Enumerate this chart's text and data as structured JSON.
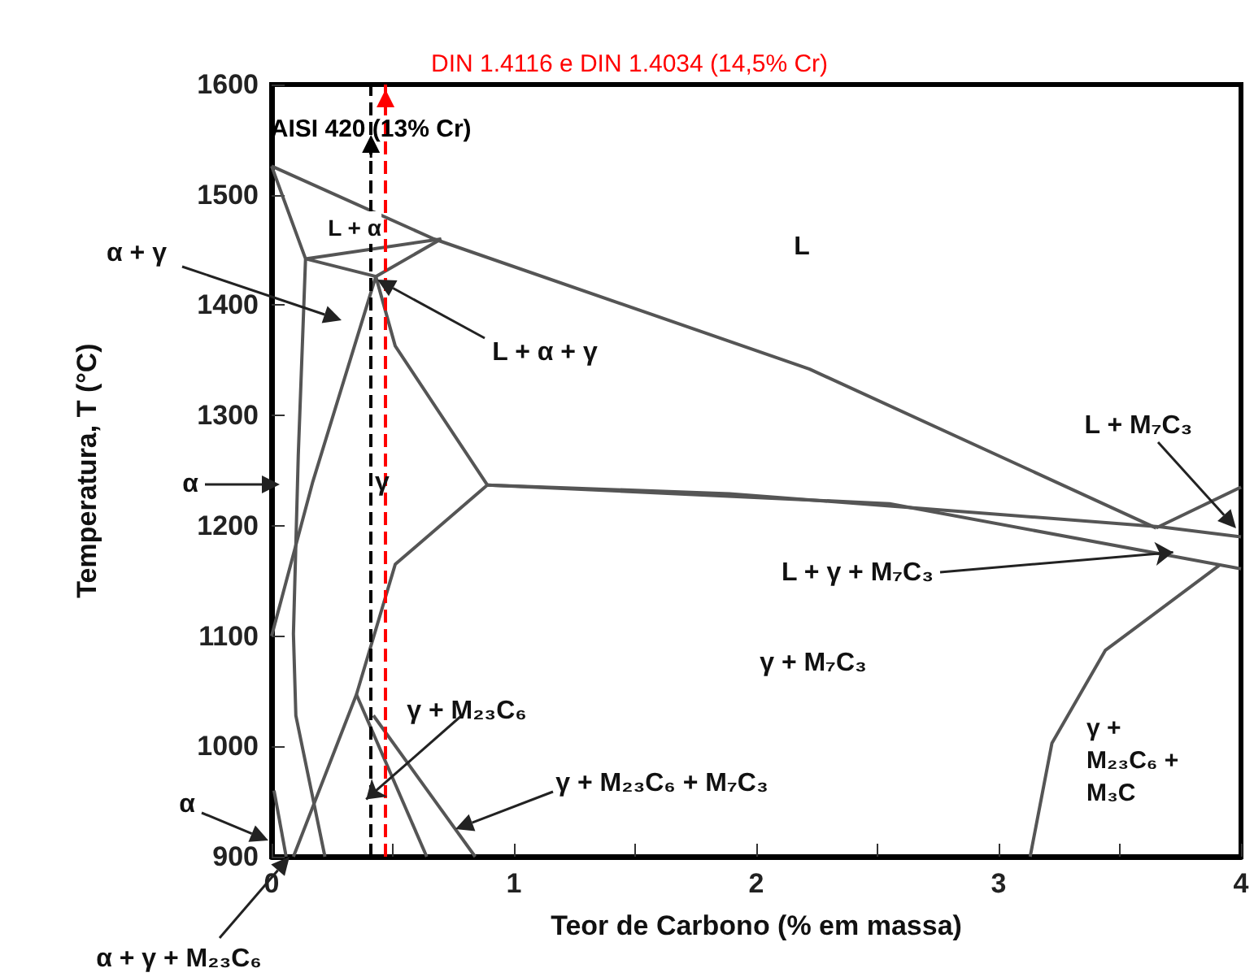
{
  "chart_data": {
    "type": "line",
    "xlabel": "Teor de Carbono (% em massa)",
    "ylabel": "Temperatura, T (°C)",
    "xlim": [
      0,
      4
    ],
    "xticks": [
      0,
      {
        "value": 0.5,
        "label": null
      },
      1,
      {
        "value": 1.5,
        "label": null
      },
      2,
      {
        "value": 2.5,
        "label": null
      },
      3,
      {
        "value": 3.5,
        "label": null
      },
      4
    ],
    "ylim": [
      900,
      1600
    ],
    "yticks": [
      900,
      1000,
      1100,
      1200,
      1300,
      1400,
      1500,
      1600
    ],
    "grid": false,
    "marker": "none",
    "line_style": "solid",
    "series": [
      {
        "color": "#555555",
        "x": [
          0,
          0.67,
          2.22,
          3.65
        ],
        "values": [
          1526,
          1460,
          1342,
          1198
        ]
      },
      {
        "color": "#555555",
        "x": [
          3.65,
          4
        ],
        "values": [
          1198,
          1235
        ]
      },
      {
        "color": "#555555",
        "x": [
          0.89,
          1.89,
          3.67,
          4
        ],
        "values": [
          1237,
          1229,
          1199,
          1190
        ]
      },
      {
        "color": "#555555",
        "x": [
          0.89,
          2.55,
          4
        ],
        "values": [
          1237,
          1220,
          1161
        ]
      },
      {
        "color": "#555555",
        "x": [
          3.13,
          3.22,
          3.44,
          3.91
        ],
        "values": [
          900,
          1003,
          1087,
          1164
        ]
      },
      {
        "color": "#555555",
        "x": [
          0,
          0.17,
          0.43,
          0.51,
          0.89,
          0.51,
          0.35,
          0.09
        ],
        "values": [
          1100,
          1240,
          1426,
          1363,
          1237,
          1165,
          1047,
          900
        ]
      },
      {
        "color": "#555555",
        "x": [
          0.35,
          0.64
        ],
        "values": [
          1047,
          900
        ]
      },
      {
        "color": "#555555",
        "x": [
          0.42,
          0.84
        ],
        "values": [
          1028,
          900
        ]
      },
      {
        "color": "#555555",
        "x": [
          0,
          0.14,
          0.11,
          0.09,
          0.1,
          0.22
        ],
        "values": [
          1526,
          1442,
          1264,
          1102,
          1028,
          900
        ]
      },
      {
        "color": "#555555",
        "x": [
          0.14,
          0.7
        ],
        "values": [
          1442,
          1460
        ]
      },
      {
        "color": "#555555",
        "x": [
          0.14,
          0.43,
          0.7
        ],
        "values": [
          1442,
          1426,
          1460
        ]
      },
      {
        "color": "#555555",
        "x": [
          0.01,
          0.06
        ],
        "values": [
          960,
          900
        ]
      }
    ],
    "ref_lines": [
      {
        "axis": "x",
        "value": 0.41,
        "label": "AISI 420 (13% Cr)",
        "color": "#000000",
        "line_style": "dashed"
      },
      {
        "axis": "x",
        "value": 0.47,
        "label": "DIN 1.4116 e DIN 1.4034 (14,5% Cr)",
        "color": "#ff0000",
        "line_style": "dashed"
      }
    ],
    "annotations": [
      "L",
      "L + α",
      "α + γ",
      "L + α + γ",
      "α",
      "γ",
      "L + M₇C₃",
      {
        "text": "L + γ + M₇C₃",
        "x": 3.72,
        "y": 1176
      },
      "γ + M₇C₃",
      {
        "text": "γ + M₂₃C₆",
        "x": 0.39,
        "y": 952
      },
      "γ + M₂₃C₆ + M₇C₃",
      "γ +\nM₂₃C₆ +\nM₃C",
      "α",
      "α + γ + M₂₃C₆"
    ]
  }
}
